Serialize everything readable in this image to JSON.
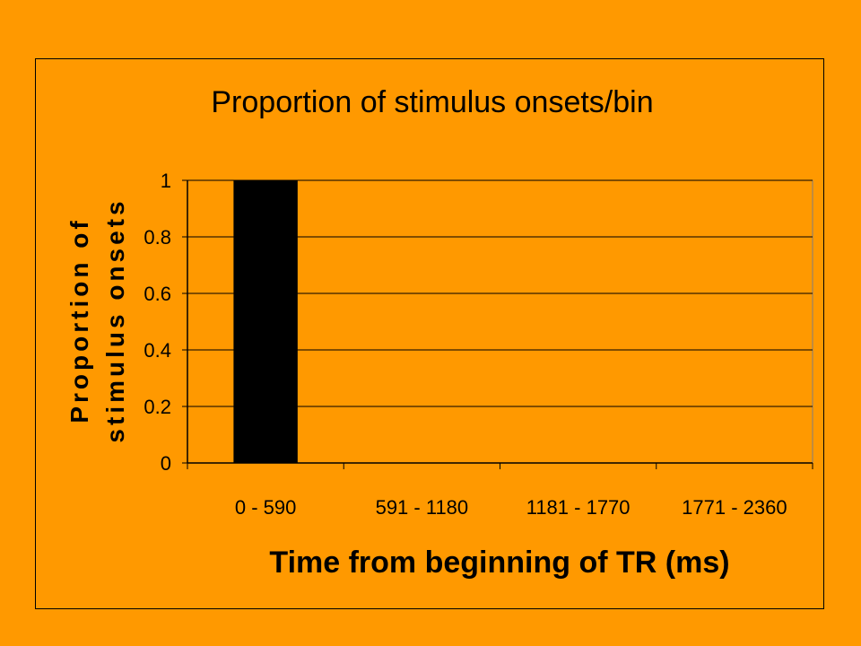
{
  "chart_data": {
    "type": "bar",
    "title": "Proportion of stimulus onsets/bin",
    "xlabel": "Time from beginning of TR (ms)",
    "ylabel_lines": [
      "Proportion of",
      "stimulus onsets"
    ],
    "categories": [
      "0 - 590",
      "591 - 1180",
      "1181 - 1770",
      "1771 - 2360"
    ],
    "values": [
      1,
      0,
      0,
      0
    ],
    "ylim": [
      0,
      1
    ],
    "yticks": [
      0,
      0.2,
      0.4,
      0.6,
      0.8,
      1
    ],
    "ytick_labels": [
      "0",
      "0.2",
      "0.4",
      "0.6",
      "0.8",
      "1"
    ],
    "grid": true,
    "legend": "none"
  },
  "colors": {
    "background": "#FF9900",
    "bar": "#000000",
    "axis": "#000000",
    "grid": "#000000",
    "plot_border": "#808080"
  }
}
